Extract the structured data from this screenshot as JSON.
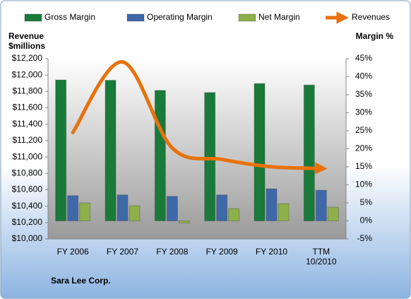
{
  "chart_data": {
    "type": "bar-line",
    "subtitle": "Sara Lee Corp.",
    "ylabel": "Revenue $millions",
    "y2label": "Margin %",
    "categories": [
      "FY 2006",
      "FY 2007",
      "FY 2008",
      "FY 2009",
      "FY 2010",
      "TTM 10/2010"
    ],
    "series": [
      {
        "name": "Gross Margin",
        "type": "bar",
        "axis": "y2",
        "color": "#1a7a3a",
        "values": [
          39.1,
          39.0,
          36.2,
          35.6,
          38.1,
          37.7
        ]
      },
      {
        "name": "Operating Margin",
        "type": "bar",
        "axis": "y2",
        "color": "#3f68a8",
        "values": [
          7.0,
          7.2,
          6.8,
          7.2,
          8.9,
          8.5
        ]
      },
      {
        "name": "Net Margin",
        "type": "bar",
        "axis": "y2",
        "color": "#8db04a",
        "values": [
          5.0,
          4.2,
          -0.6,
          3.4,
          4.8,
          3.8
        ]
      },
      {
        "name": "Revenues",
        "type": "line",
        "axis": "y",
        "color": "#e8720c",
        "values": [
          11300,
          12160,
          11110,
          10970,
          10880,
          10860
        ]
      }
    ],
    "ylim": [
      10000,
      12200
    ],
    "yticks": [
      {
        "value": 10000,
        "label": "$10,000"
      },
      {
        "value": 10200,
        "label": "$10,200"
      },
      {
        "value": 10400,
        "label": "$10,400"
      },
      {
        "value": 10600,
        "label": "$10,600"
      },
      {
        "value": 10800,
        "label": "$10,800"
      },
      {
        "value": 11000,
        "label": "$11,000"
      },
      {
        "value": 11200,
        "label": "$11,200"
      },
      {
        "value": 11400,
        "label": "$11,400"
      },
      {
        "value": 11600,
        "label": "$11,600"
      },
      {
        "value": 11800,
        "label": "$11,800"
      },
      {
        "value": 12000,
        "label": "$12,000"
      },
      {
        "value": 12200,
        "label": "$12,200"
      }
    ],
    "y2lim": [
      -5,
      45
    ],
    "y2ticks": [
      {
        "value": -5,
        "label": "-5%"
      },
      {
        "value": 0,
        "label": "0%"
      },
      {
        "value": 5,
        "label": "5%"
      },
      {
        "value": 10,
        "label": "10%"
      },
      {
        "value": 15,
        "label": "15%"
      },
      {
        "value": 20,
        "label": "20%"
      },
      {
        "value": 25,
        "label": "25%"
      },
      {
        "value": 30,
        "label": "30%"
      },
      {
        "value": 35,
        "label": "35%"
      },
      {
        "value": 40,
        "label": "40%"
      },
      {
        "value": 45,
        "label": "45%"
      }
    ],
    "legend": "top",
    "grid": false
  }
}
